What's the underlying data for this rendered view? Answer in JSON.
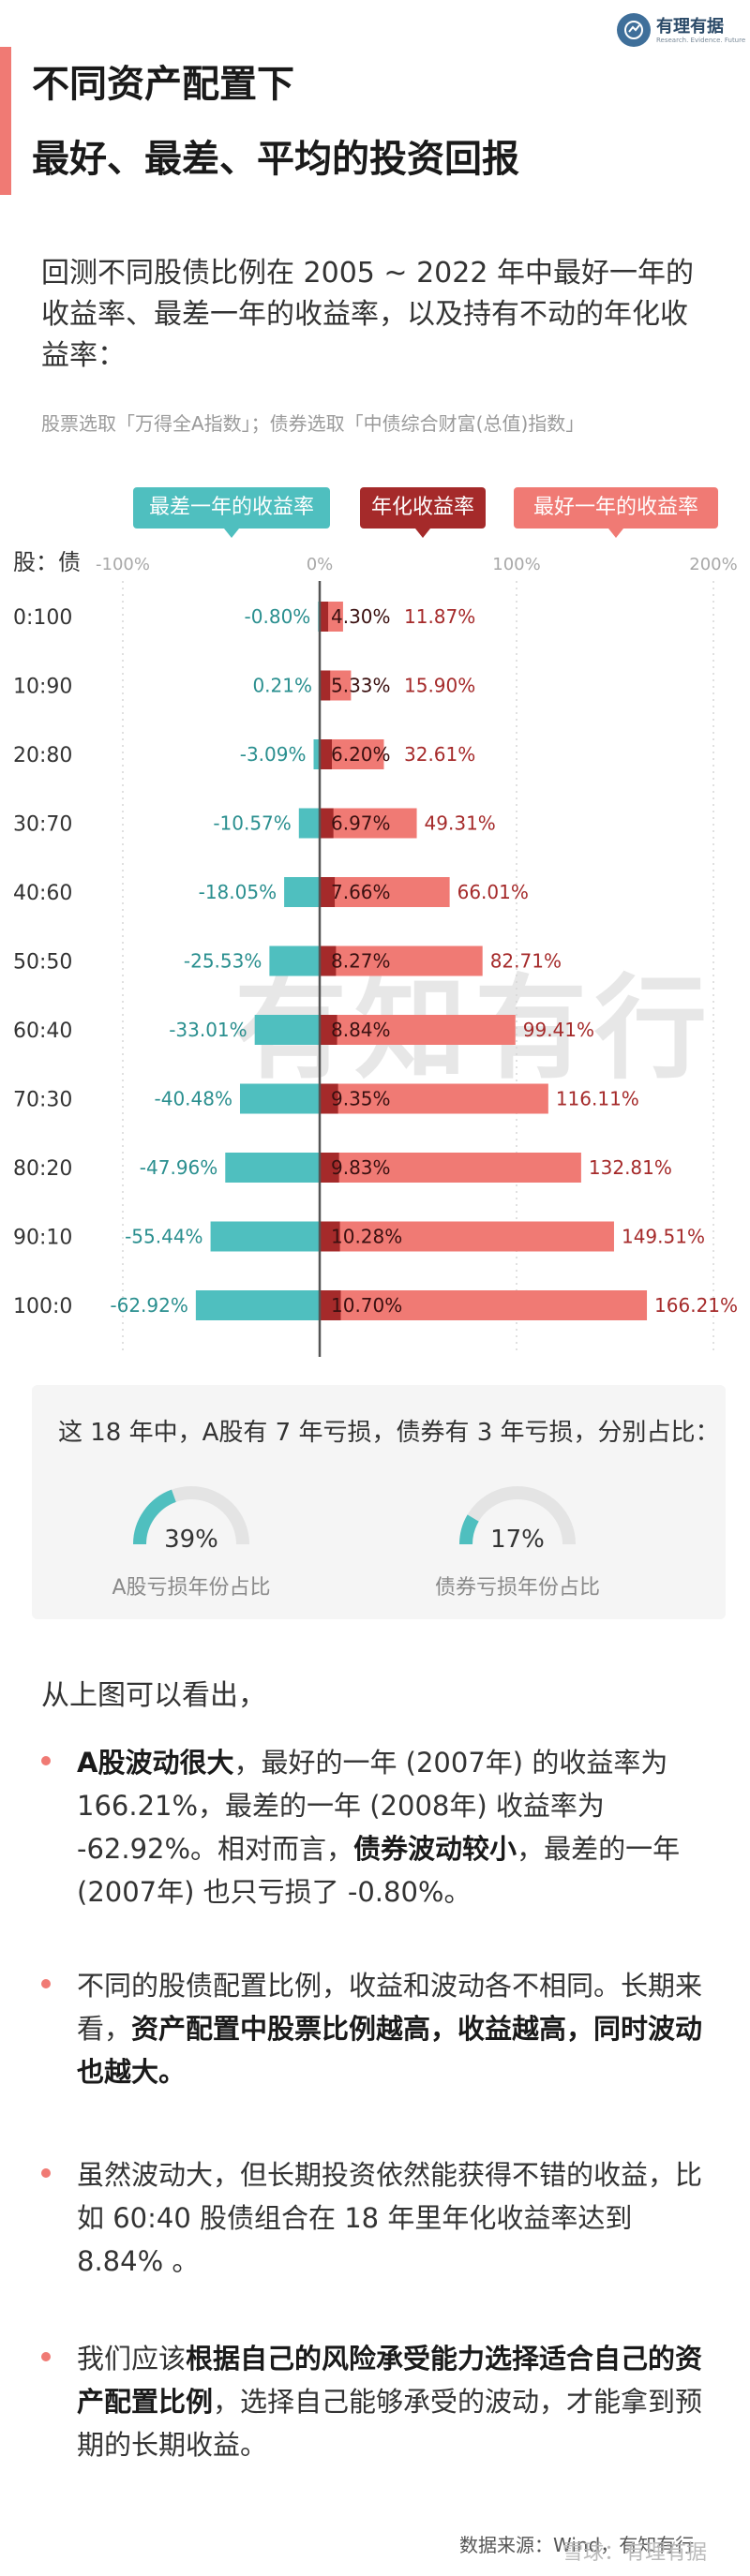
{
  "header": {
    "title_line1": "不同资产配置下",
    "title_line2": "最好、最差、平均的投资回报"
  },
  "logo": {
    "name": "有理有据",
    "tagline": "Research. Evidence. Future"
  },
  "intro": {
    "text": "回测不同股债比例在 2005 ~ 2022 年中最好一年的收益率、最差一年的收益率，以及持有不动的年化收益率：",
    "source_note": "股票选取「万得全A指数」；债券选取「中债综合财富(总值)指数」"
  },
  "legend": {
    "worst": "最差一年的收益率",
    "avg": "年化收益率",
    "best": "最好一年的收益率"
  },
  "colors": {
    "worst": "#4fbfbf",
    "avg": "#a52a2a",
    "best": "#f07a74",
    "worst_text": "#2a8f8f",
    "avg_text": "#8f2020",
    "best_text": "#a52a2a"
  },
  "watermark": "有知有行",
  "chart_data": {
    "type": "bar",
    "orientation": "horizontal",
    "ylabel": "股：债",
    "x_ticks": [
      "-100%",
      "0%",
      "100%",
      "200%"
    ],
    "xlim": [
      -100,
      200
    ],
    "categories": [
      "0:100",
      "10:90",
      "20:80",
      "30:70",
      "40:60",
      "50:50",
      "60:40",
      "70:30",
      "80:20",
      "90:10",
      "100:0"
    ],
    "series": [
      {
        "name": "最差一年的收益率",
        "values": [
          -0.8,
          0.21,
          -3.09,
          -10.57,
          -18.05,
          -25.53,
          -33.01,
          -40.48,
          -47.96,
          -55.44,
          -62.92
        ],
        "labels": [
          "-0.80%",
          "0.21%",
          "-3.09%",
          "-10.57%",
          "-18.05%",
          "-25.53%",
          "-33.01%",
          "-40.48%",
          "-47.96%",
          "-55.44%",
          "-62.92%"
        ]
      },
      {
        "name": "年化收益率",
        "values": [
          4.3,
          5.33,
          6.2,
          6.97,
          7.66,
          8.27,
          8.84,
          9.35,
          9.83,
          10.28,
          10.7
        ],
        "labels": [
          "4.30%",
          "5.33%",
          "6.20%",
          "6.97%",
          "7.66%",
          "8.27%",
          "8.84%",
          "9.35%",
          "9.83%",
          "10.28%",
          "10.70%"
        ]
      },
      {
        "name": "最好一年的收益率",
        "values": [
          11.87,
          15.9,
          32.61,
          49.31,
          66.01,
          82.71,
          99.41,
          116.11,
          132.81,
          149.51,
          166.21
        ],
        "labels": [
          "11.87%",
          "15.90%",
          "32.61%",
          "49.31%",
          "66.01%",
          "82.71%",
          "99.41%",
          "116.11%",
          "132.81%",
          "149.51%",
          "166.21%"
        ]
      }
    ]
  },
  "summary": {
    "text": "这 18 年中，A股有 7 年亏损，债券有 3 年亏损，分别占比：",
    "gauges": [
      {
        "value": 0.39,
        "value_label": "39%",
        "label": "A股亏损年份占比"
      },
      {
        "value": 0.17,
        "value_label": "17%",
        "label": "债券亏损年份占比"
      }
    ]
  },
  "conclusion": {
    "title": "从上图可以看出，",
    "p1_a": "A股波动很大",
    "p1_b": "，最好的一年 (2007年) 的收益率为 166.21%，最差的一年 (2008年) 收益率为 -62.92%。相对而言，",
    "p1_c": "债券波动较小",
    "p1_d": "，最差的一年 (2007年) 也只亏损了 -0.80%。",
    "p2_a": "不同的股债配置比例，收益和波动各不相同。长期来看，",
    "p2_b": "资产配置中股票比例越高，收益越高，同时波动也越大。",
    "p3": "虽然波动大，但长期投资依然能获得不错的收益，比如 60:40 股债组合在 18 年里年化收益率达到 8.84% 。",
    "p4_a": "我们应该",
    "p4_b": "根据自己的风险承受能力选择适合自己的资产配置比例",
    "p4_c": "，选择自己能够承受的波动，才能拿到预期的长期收益。"
  },
  "footer": {
    "source": "数据来源：Wind，有知有行",
    "watermark": "雪球：有理有据"
  }
}
